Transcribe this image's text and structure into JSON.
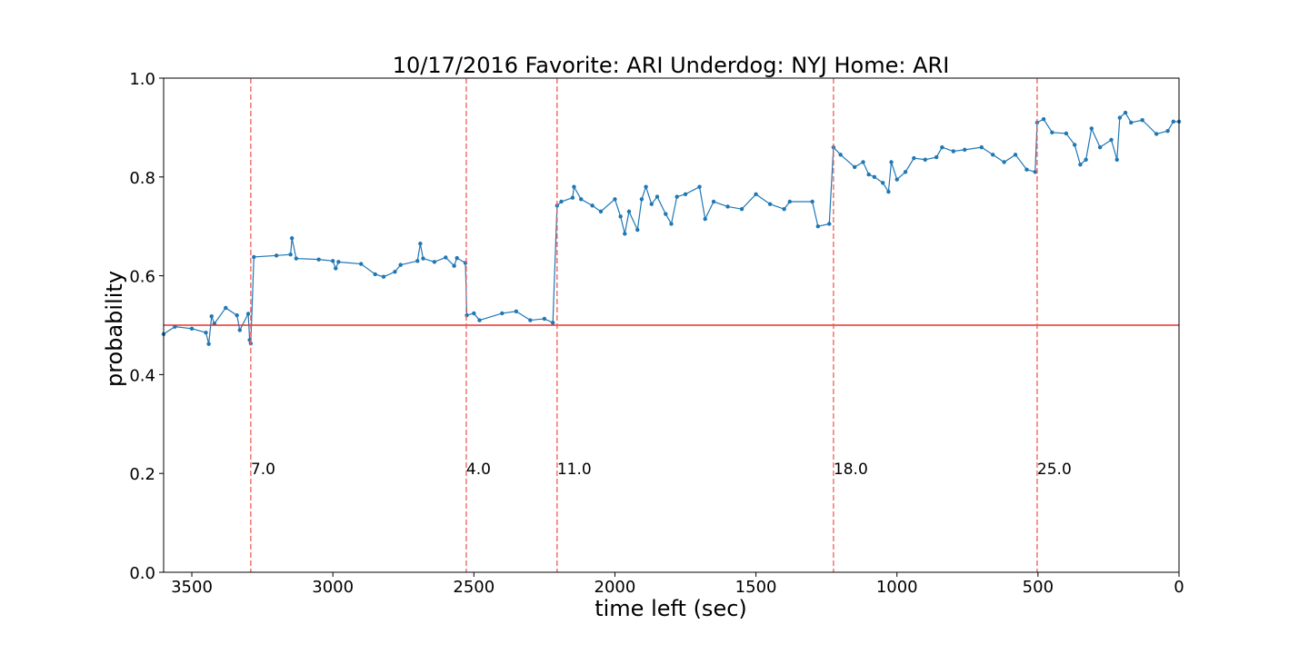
{
  "chart_data": {
    "type": "line",
    "title": "10/17/2016 Favorite: ARI Underdog: NYJ Home: ARI",
    "x_label": "time left (sec)",
    "y_label": "probability",
    "xlim": [
      3600,
      0
    ],
    "ylim": [
      0,
      1
    ],
    "xticks": [
      3500,
      3000,
      2500,
      2000,
      1500,
      1000,
      500,
      0
    ],
    "yticks": [
      {
        "value": 0,
        "label": "0.0"
      },
      {
        "value": 0.2,
        "label": "0.2"
      },
      {
        "value": 0.4,
        "label": "0.4"
      },
      {
        "value": 0.6,
        "label": "0.6"
      },
      {
        "value": 0.8,
        "label": "0.8"
      },
      {
        "value": 1,
        "label": "1.0"
      }
    ],
    "hline": {
      "value": 0.5,
      "color": "#e8312a"
    },
    "vlines": [
      {
        "x": 3291,
        "label": "7.0"
      },
      {
        "x": 2527,
        "label": "4.0"
      },
      {
        "x": 2205,
        "label": "11.0"
      },
      {
        "x": 1225,
        "label": "18.0"
      },
      {
        "x": 503,
        "label": "25.0"
      }
    ],
    "vline_color": "#f05c57",
    "series": [
      {
        "color": "#1f77b4",
        "x": [
          3600,
          3560,
          3500,
          3450,
          3440,
          3430,
          3420,
          3380,
          3340,
          3330,
          3300,
          3295,
          3291,
          3280,
          3200,
          3150,
          3145,
          3130,
          3050,
          3000,
          2990,
          2980,
          2900,
          2850,
          2820,
          2780,
          2760,
          2700,
          2690,
          2680,
          2640,
          2600,
          2570,
          2560,
          2530,
          2525,
          2500,
          2480,
          2400,
          2350,
          2300,
          2250,
          2220,
          2205,
          2190,
          2150,
          2145,
          2120,
          2080,
          2050,
          2000,
          1980,
          1965,
          1950,
          1920,
          1905,
          1890,
          1870,
          1850,
          1820,
          1800,
          1780,
          1750,
          1700,
          1680,
          1650,
          1600,
          1550,
          1500,
          1450,
          1400,
          1380,
          1300,
          1280,
          1240,
          1225,
          1200,
          1150,
          1120,
          1100,
          1080,
          1050,
          1030,
          1020,
          1000,
          970,
          940,
          900,
          860,
          840,
          800,
          760,
          700,
          660,
          620,
          580,
          540,
          510,
          503,
          480,
          450,
          400,
          370,
          350,
          330,
          310,
          280,
          240,
          220,
          210,
          190,
          170,
          130,
          80,
          40,
          20,
          0
        ],
        "values": [
          0.482,
          0.497,
          0.493,
          0.485,
          0.462,
          0.518,
          0.503,
          0.535,
          0.52,
          0.49,
          0.523,
          0.47,
          0.463,
          0.638,
          0.641,
          0.643,
          0.676,
          0.635,
          0.633,
          0.63,
          0.615,
          0.628,
          0.624,
          0.603,
          0.598,
          0.608,
          0.622,
          0.63,
          0.665,
          0.635,
          0.628,
          0.637,
          0.62,
          0.636,
          0.626,
          0.52,
          0.524,
          0.51,
          0.524,
          0.528,
          0.51,
          0.513,
          0.505,
          0.742,
          0.75,
          0.758,
          0.78,
          0.755,
          0.742,
          0.73,
          0.755,
          0.72,
          0.685,
          0.73,
          0.693,
          0.755,
          0.78,
          0.745,
          0.76,
          0.725,
          0.705,
          0.76,
          0.765,
          0.78,
          0.715,
          0.75,
          0.74,
          0.735,
          0.765,
          0.745,
          0.735,
          0.75,
          0.75,
          0.7,
          0.705,
          0.86,
          0.845,
          0.82,
          0.83,
          0.805,
          0.8,
          0.788,
          0.77,
          0.83,
          0.795,
          0.81,
          0.838,
          0.835,
          0.84,
          0.86,
          0.852,
          0.855,
          0.86,
          0.845,
          0.83,
          0.845,
          0.815,
          0.81,
          0.91,
          0.917,
          0.89,
          0.888,
          0.865,
          0.825,
          0.835,
          0.898,
          0.86,
          0.875,
          0.835,
          0.92,
          0.93,
          0.91,
          0.915,
          0.887,
          0.893,
          0.912,
          0.912
        ]
      }
    ]
  }
}
